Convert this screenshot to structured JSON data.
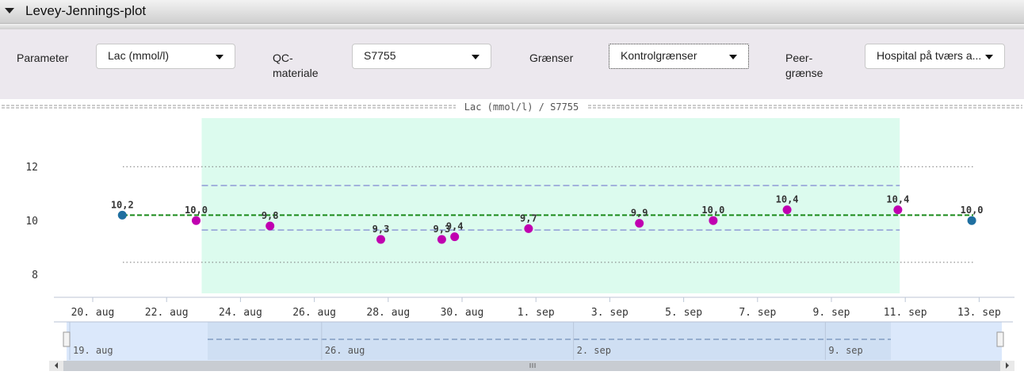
{
  "panel": {
    "title": "Levey-Jennings-plot"
  },
  "controls": {
    "parameter_label": "Parameter",
    "parameter_value": "Lac (mmol/l)",
    "qc_label_line1": "QC-",
    "qc_label_line2": "materiale",
    "qc_value": "S7755",
    "limits_label": "Grænser",
    "limits_value": "Kontrolgrænser",
    "peer_label_line1": "Peer-",
    "peer_label_line2": "grænse",
    "peer_value": "Hospital på tværs a..."
  },
  "chart_data": {
    "type": "scatter",
    "title": "Lac (mmol/l) / S7755",
    "y_ticks": [
      8,
      10,
      12
    ],
    "ylim": [
      7.3,
      13.8
    ],
    "x_ticks": [
      "20. aug",
      "22. aug",
      "24. aug",
      "26. aug",
      "28. aug",
      "30. aug",
      "1. sep",
      "3. sep",
      "5. sep",
      "7. sep",
      "9. sep",
      "11. sep",
      "13. sep"
    ],
    "x_start_label": "20. aug",
    "target_value": 10.2,
    "inner_limits": [
      9.65,
      11.3
    ],
    "outer_limits": [
      8.45,
      12.0
    ],
    "control_band": {
      "from": "22. aug 23:00",
      "to": "10. sep 21:00"
    },
    "points": [
      {
        "day": 0.8,
        "value": 10.2,
        "label": "10,2",
        "color": "#1f6fa0"
      },
      {
        "day": 2.8,
        "value": 10.0,
        "label": "10,0",
        "color": "#c000b0"
      },
      {
        "day": 4.8,
        "value": 9.8,
        "label": "9,8",
        "color": "#c000b0"
      },
      {
        "day": 7.8,
        "value": 9.3,
        "label": "9,3",
        "color": "#c000b0"
      },
      {
        "day": 9.45,
        "value": 9.3,
        "label": "9,3",
        "color": "#c000b0"
      },
      {
        "day": 9.8,
        "value": 9.4,
        "label": "9,4",
        "color": "#c000b0"
      },
      {
        "day": 11.8,
        "value": 9.7,
        "label": "9,7",
        "color": "#c000b0"
      },
      {
        "day": 14.8,
        "value": 9.9,
        "label": "9,9",
        "color": "#c000b0"
      },
      {
        "day": 16.8,
        "value": 10.0,
        "label": "10,0",
        "color": "#c000b0"
      },
      {
        "day": 18.8,
        "value": 10.4,
        "label": "10,4",
        "color": "#c000b0"
      },
      {
        "day": 21.8,
        "value": 10.4,
        "label": "10,4",
        "color": "#c000b0"
      },
      {
        "day": 23.8,
        "value": 10.0,
        "label": "10,0",
        "color": "#1f6fa0"
      }
    ],
    "navigator_labels": [
      "19. aug",
      "26. aug",
      "2. sep",
      "9. sep"
    ],
    "colors": {
      "band": "#dcfbee",
      "target": "#1a8a1a",
      "limit_line": "#8e9ad6",
      "navigator": "#dbe8fb"
    }
  }
}
